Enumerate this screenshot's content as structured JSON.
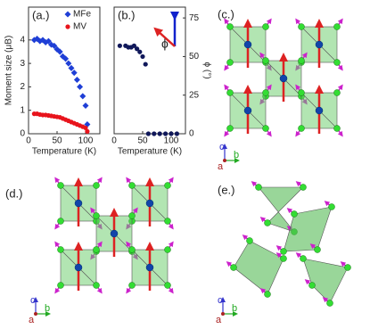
{
  "chart_data": [
    {
      "type": "scatter",
      "panel_label": "(a.)",
      "x_label": "Temperature (K)",
      "y_label": "Moment size (μB)",
      "xlim": [
        0,
        125
      ],
      "xticks": [
        0,
        50,
        100
      ],
      "ylim": [
        0,
        5.4
      ],
      "yticks": [
        0,
        1,
        2,
        3,
        4
      ],
      "legend": "upper right",
      "series": [
        {
          "name": "MFe",
          "color": "#1f3fd6",
          "marker": "diamond",
          "x": [
            10,
            15,
            20,
            25,
            30,
            35,
            40,
            45,
            50,
            55,
            60,
            65,
            70,
            75,
            80,
            85,
            90,
            95,
            100,
            103
          ],
          "values": [
            4.0,
            4.05,
            3.95,
            4.0,
            3.9,
            3.95,
            3.8,
            3.75,
            3.6,
            3.5,
            3.3,
            3.2,
            3.0,
            2.8,
            2.6,
            2.3,
            2.0,
            1.6,
            1.2,
            0.4
          ]
        },
        {
          "name": "MV",
          "color": "#e8141c",
          "marker": "circle",
          "x": [
            10,
            15,
            20,
            25,
            30,
            35,
            40,
            45,
            50,
            55,
            60,
            65,
            70,
            75,
            80,
            85,
            90,
            95,
            100,
            103
          ],
          "values": [
            0.85,
            0.85,
            0.82,
            0.8,
            0.8,
            0.78,
            0.76,
            0.74,
            0.72,
            0.7,
            0.65,
            0.6,
            0.55,
            0.5,
            0.45,
            0.4,
            0.35,
            0.3,
            0.25,
            0.1
          ]
        }
      ]
    },
    {
      "type": "scatter",
      "panel_label": "(b.)",
      "annotation": "ϕ",
      "x_label": "Temperature (K)",
      "y2_label": "ϕ (°)",
      "xlim": [
        0,
        125
      ],
      "xticks": [
        0,
        50,
        100
      ],
      "y2lim": [
        0,
        82
      ],
      "y2ticks": [
        0,
        25,
        50,
        75
      ],
      "series": [
        {
          "name": "ϕ",
          "color": "#10185a",
          "axis": "y2",
          "x": [
            10,
            20,
            25,
            30,
            35,
            40,
            45,
            50,
            55,
            60,
            70,
            80,
            90,
            100,
            110
          ],
          "values": [
            57,
            57,
            56,
            56,
            57,
            55,
            53,
            50,
            45,
            0,
            0,
            0,
            0,
            0,
            0
          ]
        }
      ]
    }
  ],
  "structures": [
    {
      "label": "(c.)",
      "axes": [
        "c",
        "a",
        "b"
      ]
    },
    {
      "label": "(d.)",
      "axes": [
        "c",
        "a",
        "b"
      ]
    },
    {
      "label": "(e.)",
      "axes": [
        "c",
        "a",
        "b"
      ]
    }
  ]
}
